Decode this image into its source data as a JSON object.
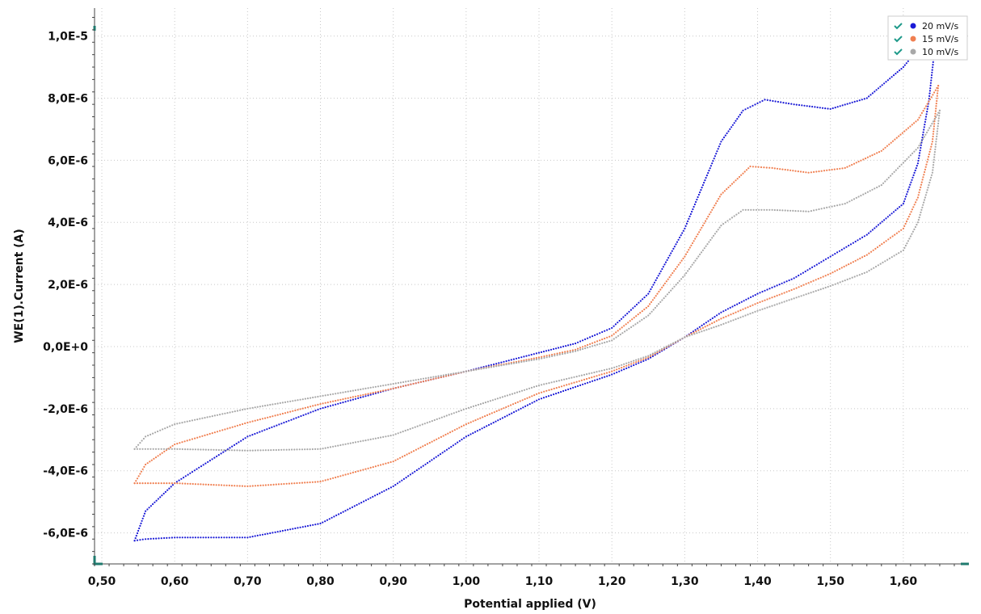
{
  "chart_data": {
    "type": "scatter",
    "xlabel": "Potential applied (V)",
    "ylabel": "WE(1).Current (A)",
    "xlim": [
      0.49,
      1.69
    ],
    "ylim": [
      -7e-06,
      1.09e-05
    ],
    "xticks": [
      0.5,
      0.6,
      0.7,
      0.8,
      0.9,
      1.0,
      1.1,
      1.2,
      1.3,
      1.4,
      1.5,
      1.6
    ],
    "xtick_labels": [
      "0,50",
      "0,60",
      "0,70",
      "0,80",
      "0,90",
      "1,00",
      "1,10",
      "1,20",
      "1,30",
      "1,40",
      "1,50",
      "1,60"
    ],
    "yticks": [
      -6e-06,
      -4e-06,
      -2e-06,
      0,
      2e-06,
      4e-06,
      6e-06,
      8e-06,
      1e-05
    ],
    "ytick_labels": [
      "-6,0E-6",
      "-4,0E-6",
      "-2,0E-6",
      "0,0E+0",
      "2,0E-6",
      "4,0E-6",
      "6,0E-6",
      "8,0E-6",
      "1,0E-5"
    ],
    "grid": true,
    "legend_position": "top-right",
    "series": [
      {
        "name": "20 mV/s",
        "color": "#1a1ad6",
        "forward": [
          [
            0.545,
            -6.25e-06
          ],
          [
            0.56,
            -5.3e-06
          ],
          [
            0.6,
            -4.4e-06
          ],
          [
            0.7,
            -2.9e-06
          ],
          [
            0.8,
            -2e-06
          ],
          [
            0.9,
            -1.35e-06
          ],
          [
            1.0,
            -8e-07
          ],
          [
            1.1,
            -2e-07
          ],
          [
            1.15,
            1e-07
          ],
          [
            1.2,
            6e-07
          ],
          [
            1.25,
            1.7e-06
          ],
          [
            1.3,
            3.8e-06
          ],
          [
            1.35,
            6.6e-06
          ],
          [
            1.38,
            7.6e-06
          ],
          [
            1.41,
            7.95e-06
          ],
          [
            1.45,
            7.8e-06
          ],
          [
            1.5,
            7.65e-06
          ],
          [
            1.55,
            8e-06
          ],
          [
            1.6,
            9e-06
          ],
          [
            1.635,
            1e-05
          ],
          [
            1.645,
            1.05e-05
          ]
        ],
        "reverse": [
          [
            1.645,
            1e-05
          ],
          [
            1.635,
            7.9e-06
          ],
          [
            1.62,
            5.9e-06
          ],
          [
            1.6,
            4.6e-06
          ],
          [
            1.55,
            3.6e-06
          ],
          [
            1.5,
            2.9e-06
          ],
          [
            1.45,
            2.2e-06
          ],
          [
            1.4,
            1.7e-06
          ],
          [
            1.35,
            1.1e-06
          ],
          [
            1.3,
            3e-07
          ],
          [
            1.25,
            -4e-07
          ],
          [
            1.2,
            -9e-07
          ],
          [
            1.1,
            -1.7e-06
          ],
          [
            1.0,
            -2.9e-06
          ],
          [
            0.9,
            -4.5e-06
          ],
          [
            0.8,
            -5.7e-06
          ],
          [
            0.7,
            -6.15e-06
          ],
          [
            0.6,
            -6.15e-06
          ],
          [
            0.56,
            -6.2e-06
          ],
          [
            0.545,
            -6.25e-06
          ]
        ]
      },
      {
        "name": "15 mV/s",
        "color": "#f07f50",
        "forward": [
          [
            0.545,
            -4.4e-06
          ],
          [
            0.56,
            -3.8e-06
          ],
          [
            0.6,
            -3.15e-06
          ],
          [
            0.7,
            -2.45e-06
          ],
          [
            0.8,
            -1.85e-06
          ],
          [
            0.9,
            -1.35e-06
          ],
          [
            1.0,
            -8e-07
          ],
          [
            1.1,
            -3.5e-07
          ],
          [
            1.15,
            -1e-07
          ],
          [
            1.2,
            3.5e-07
          ],
          [
            1.25,
            1.3e-06
          ],
          [
            1.3,
            2.9e-06
          ],
          [
            1.35,
            4.9e-06
          ],
          [
            1.39,
            5.8e-06
          ],
          [
            1.42,
            5.75e-06
          ],
          [
            1.47,
            5.6e-06
          ],
          [
            1.52,
            5.75e-06
          ],
          [
            1.57,
            6.3e-06
          ],
          [
            1.62,
            7.3e-06
          ],
          [
            1.648,
            8.4e-06
          ]
        ],
        "reverse": [
          [
            1.648,
            8.4e-06
          ],
          [
            1.64,
            6.6e-06
          ],
          [
            1.62,
            4.8e-06
          ],
          [
            1.6,
            3.8e-06
          ],
          [
            1.55,
            2.95e-06
          ],
          [
            1.5,
            2.35e-06
          ],
          [
            1.45,
            1.85e-06
          ],
          [
            1.4,
            1.4e-06
          ],
          [
            1.35,
            9e-07
          ],
          [
            1.3,
            3e-07
          ],
          [
            1.25,
            -3.5e-07
          ],
          [
            1.2,
            -8e-07
          ],
          [
            1.1,
            -1.5e-06
          ],
          [
            1.0,
            -2.5e-06
          ],
          [
            0.9,
            -3.7e-06
          ],
          [
            0.8,
            -4.35e-06
          ],
          [
            0.7,
            -4.5e-06
          ],
          [
            0.6,
            -4.4e-06
          ],
          [
            0.545,
            -4.4e-06
          ]
        ]
      },
      {
        "name": "10 mV/s",
        "color": "#a8a8a8",
        "forward": [
          [
            0.545,
            -3.3e-06
          ],
          [
            0.56,
            -2.9e-06
          ],
          [
            0.6,
            -2.5e-06
          ],
          [
            0.7,
            -2e-06
          ],
          [
            0.8,
            -1.6e-06
          ],
          [
            0.9,
            -1.2e-06
          ],
          [
            1.0,
            -8e-07
          ],
          [
            1.1,
            -4e-07
          ],
          [
            1.15,
            -1.5e-07
          ],
          [
            1.2,
            2e-07
          ],
          [
            1.25,
            1e-06
          ],
          [
            1.3,
            2.3e-06
          ],
          [
            1.35,
            3.9e-06
          ],
          [
            1.38,
            4.4e-06
          ],
          [
            1.42,
            4.4e-06
          ],
          [
            1.47,
            4.35e-06
          ],
          [
            1.52,
            4.6e-06
          ],
          [
            1.57,
            5.2e-06
          ],
          [
            1.62,
            6.4e-06
          ],
          [
            1.65,
            7.6e-06
          ]
        ],
        "reverse": [
          [
            1.65,
            7.6e-06
          ],
          [
            1.64,
            5.6e-06
          ],
          [
            1.62,
            4e-06
          ],
          [
            1.6,
            3.1e-06
          ],
          [
            1.55,
            2.4e-06
          ],
          [
            1.5,
            1.95e-06
          ],
          [
            1.45,
            1.55e-06
          ],
          [
            1.4,
            1.15e-06
          ],
          [
            1.35,
            7e-07
          ],
          [
            1.3,
            3e-07
          ],
          [
            1.25,
            -3e-07
          ],
          [
            1.2,
            -7e-07
          ],
          [
            1.1,
            -1.25e-06
          ],
          [
            1.0,
            -2e-06
          ],
          [
            0.9,
            -2.85e-06
          ],
          [
            0.8,
            -3.3e-06
          ],
          [
            0.7,
            -3.35e-06
          ],
          [
            0.6,
            -3.3e-06
          ],
          [
            0.545,
            -3.3e-06
          ]
        ]
      }
    ]
  },
  "legend": {
    "check_icon": "check-icon",
    "check_color": "#1f9a8a"
  },
  "axis_color": "#1f7a6e"
}
